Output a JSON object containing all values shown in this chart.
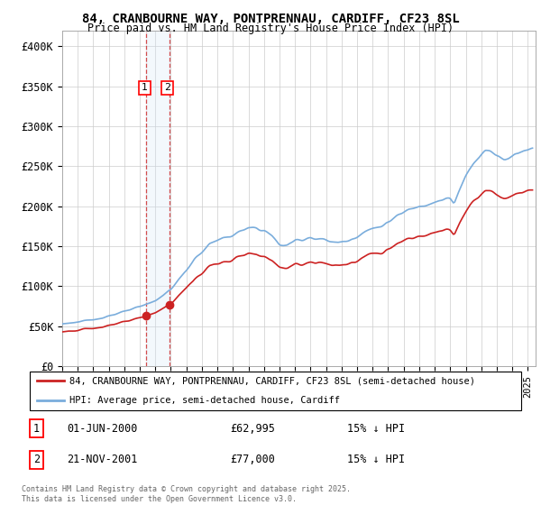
{
  "title": "84, CRANBOURNE WAY, PONTPRENNAU, CARDIFF, CF23 8SL",
  "subtitle": "Price paid vs. HM Land Registry's House Price Index (HPI)",
  "hpi_color": "#7aaddc",
  "price_color": "#cc2222",
  "vline_color": "#cc2222",
  "shade_color": "#d0e4f7",
  "background_color": "#ffffff",
  "ylim": [
    0,
    420000
  ],
  "yticks": [
    0,
    50000,
    100000,
    150000,
    200000,
    250000,
    300000,
    350000,
    400000
  ],
  "ytick_labels": [
    "£0",
    "£50K",
    "£100K",
    "£150K",
    "£200K",
    "£250K",
    "£300K",
    "£350K",
    "£400K"
  ],
  "legend_label_price": "84, CRANBOURNE WAY, PONTPRENNAU, CARDIFF, CF23 8SL (semi-detached house)",
  "legend_label_hpi": "HPI: Average price, semi-detached house, Cardiff",
  "transaction1_date": "01-JUN-2000",
  "transaction1_price": "£62,995",
  "transaction1_hpi": "15% ↓ HPI",
  "transaction2_date": "21-NOV-2001",
  "transaction2_price": "£77,000",
  "transaction2_hpi": "15% ↓ HPI",
  "footer": "Contains HM Land Registry data © Crown copyright and database right 2025.\nThis data is licensed under the Open Government Licence v3.0.",
  "transaction1_x": 2000.42,
  "transaction2_x": 2001.89,
  "transaction1_y": 62995,
  "transaction2_y": 77000,
  "xlim_start": 1995.0,
  "xlim_end": 2025.5
}
